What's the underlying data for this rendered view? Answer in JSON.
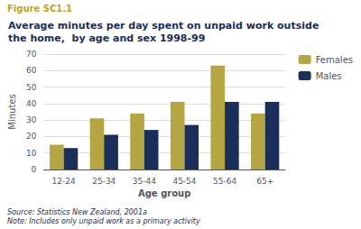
{
  "chart_data": {
    "type": "bar",
    "title": "Average minutes per day spent on unpaid work outside\nthe home,  by age and sex 1998-99",
    "annotations": [
      "Figure SC1.1",
      "Source: Statistics New Zealand, 2001a\nNote: Includes only unpaid work as a primary activity"
    ],
    "xlabel": "Age group",
    "ylabel": "Minutes",
    "categories": [
      "12-24",
      "25-34",
      "35-44",
      "45-54",
      "55-64",
      "65+"
    ],
    "series": [
      {
        "name": "Females",
        "color": "#b5a642",
        "values": [
          15,
          31,
          34,
          41,
          63,
          34
        ]
      },
      {
        "name": "Males",
        "color": "#1a2e5a",
        "values": [
          13,
          21,
          24,
          27,
          41,
          41
        ]
      }
    ],
    "ylim": [
      0,
      70
    ],
    "yticks": [
      0,
      10,
      20,
      30,
      40,
      50,
      60,
      70
    ],
    "grid": true,
    "legend": "right"
  }
}
